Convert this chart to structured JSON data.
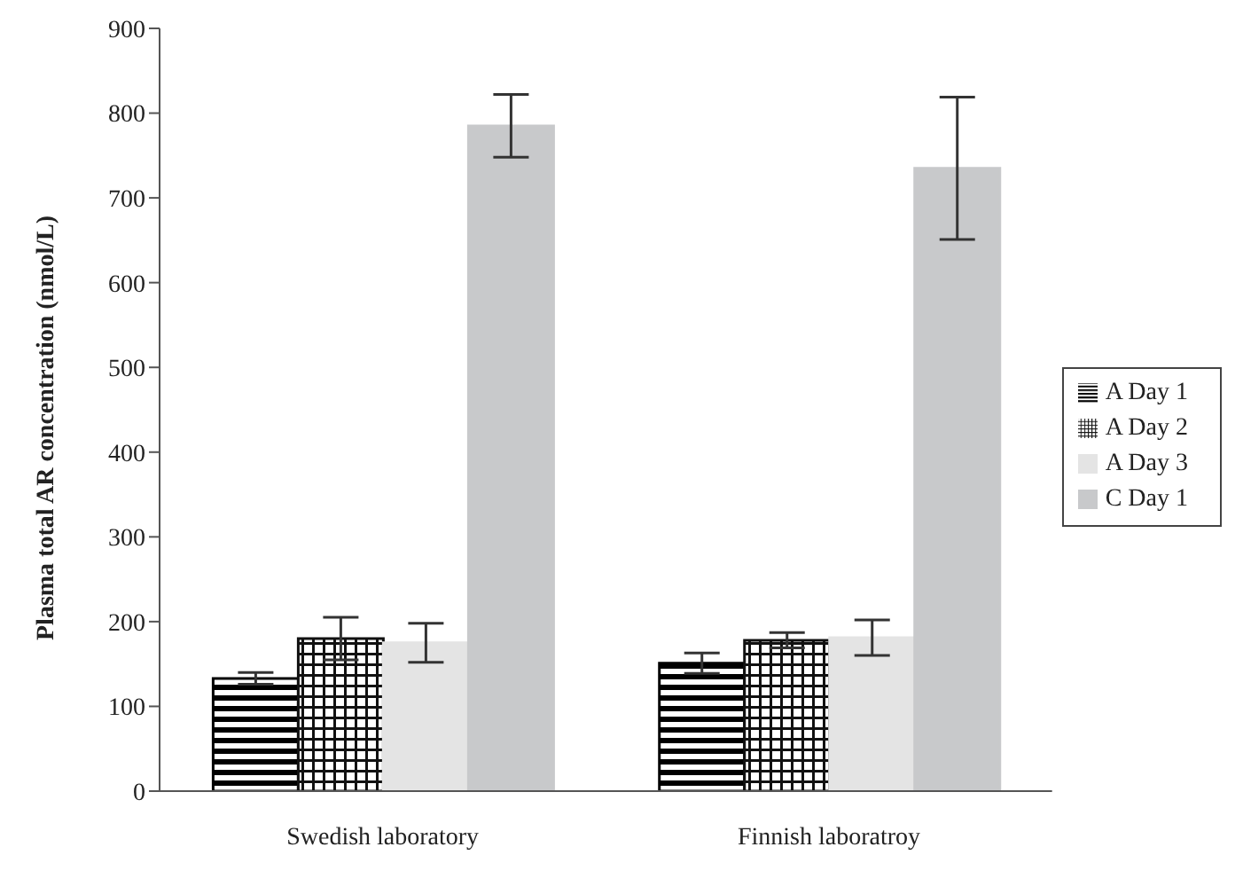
{
  "chart_data": {
    "type": "bar",
    "ylabel": "Plasma total AR concentration (nmol/L)",
    "categories": [
      "Swedish laboratory",
      "Finnish laboratroy"
    ],
    "series": [
      {
        "name": "A Day 1",
        "color": "#000000",
        "values": [
          133,
          151
        ],
        "errors": [
          7,
          12
        ]
      },
      {
        "name": "A Day 2",
        "color": "#111111",
        "values": [
          180,
          178
        ],
        "errors": [
          25,
          9
        ]
      },
      {
        "name": "A Day 3",
        "color": "#e4e4e4",
        "values": [
          175,
          181
        ],
        "errors": [
          23,
          21
        ]
      },
      {
        "name": "C Day 1",
        "color": "#c8c9cb",
        "values": [
          785,
          735
        ],
        "errors": [
          37,
          84
        ]
      }
    ],
    "ylim": [
      0,
      900
    ],
    "yticks": [
      0,
      100,
      200,
      300,
      400,
      500,
      600,
      700,
      800,
      900
    ],
    "grid": false,
    "legend": "right"
  }
}
